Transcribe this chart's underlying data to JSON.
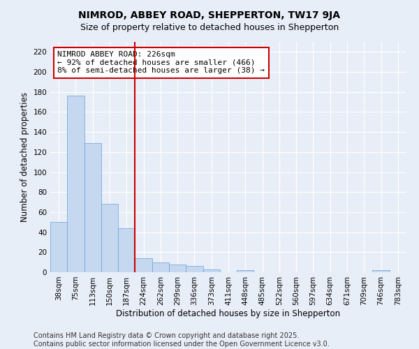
{
  "title": "NIMROD, ABBEY ROAD, SHEPPERTON, TW17 9JA",
  "subtitle": "Size of property relative to detached houses in Shepperton",
  "xlabel": "Distribution of detached houses by size in Shepperton",
  "ylabel": "Number of detached properties",
  "categories": [
    "38sqm",
    "75sqm",
    "113sqm",
    "150sqm",
    "187sqm",
    "224sqm",
    "262sqm",
    "299sqm",
    "336sqm",
    "373sqm",
    "411sqm",
    "448sqm",
    "485sqm",
    "522sqm",
    "560sqm",
    "597sqm",
    "634sqm",
    "671sqm",
    "709sqm",
    "746sqm",
    "783sqm"
  ],
  "values": [
    50,
    176,
    129,
    68,
    44,
    14,
    10,
    8,
    6,
    3,
    0,
    2,
    0,
    0,
    0,
    0,
    0,
    0,
    0,
    2,
    0
  ],
  "bar_color": "#c5d8f0",
  "bar_edge_color": "#6aa0d4",
  "marker_line_index": 5,
  "marker_line_color": "#cc0000",
  "annotation_text": "NIMROD ABBEY ROAD: 226sqm\n← 92% of detached houses are smaller (466)\n8% of semi-detached houses are larger (38) →",
  "annotation_box_color": "#ffffff",
  "annotation_box_edge_color": "#cc0000",
  "ylim": [
    0,
    230
  ],
  "yticks": [
    0,
    20,
    40,
    60,
    80,
    100,
    120,
    140,
    160,
    180,
    200,
    220
  ],
  "footer_line1": "Contains HM Land Registry data © Crown copyright and database right 2025.",
  "footer_line2": "Contains public sector information licensed under the Open Government Licence v3.0.",
  "background_color": "#e8eef8",
  "plot_bg_color": "#e8eef8",
  "grid_color": "#ffffff",
  "title_fontsize": 10,
  "subtitle_fontsize": 9,
  "axis_label_fontsize": 8.5,
  "tick_fontsize": 7.5,
  "annotation_fontsize": 8,
  "footer_fontsize": 7
}
